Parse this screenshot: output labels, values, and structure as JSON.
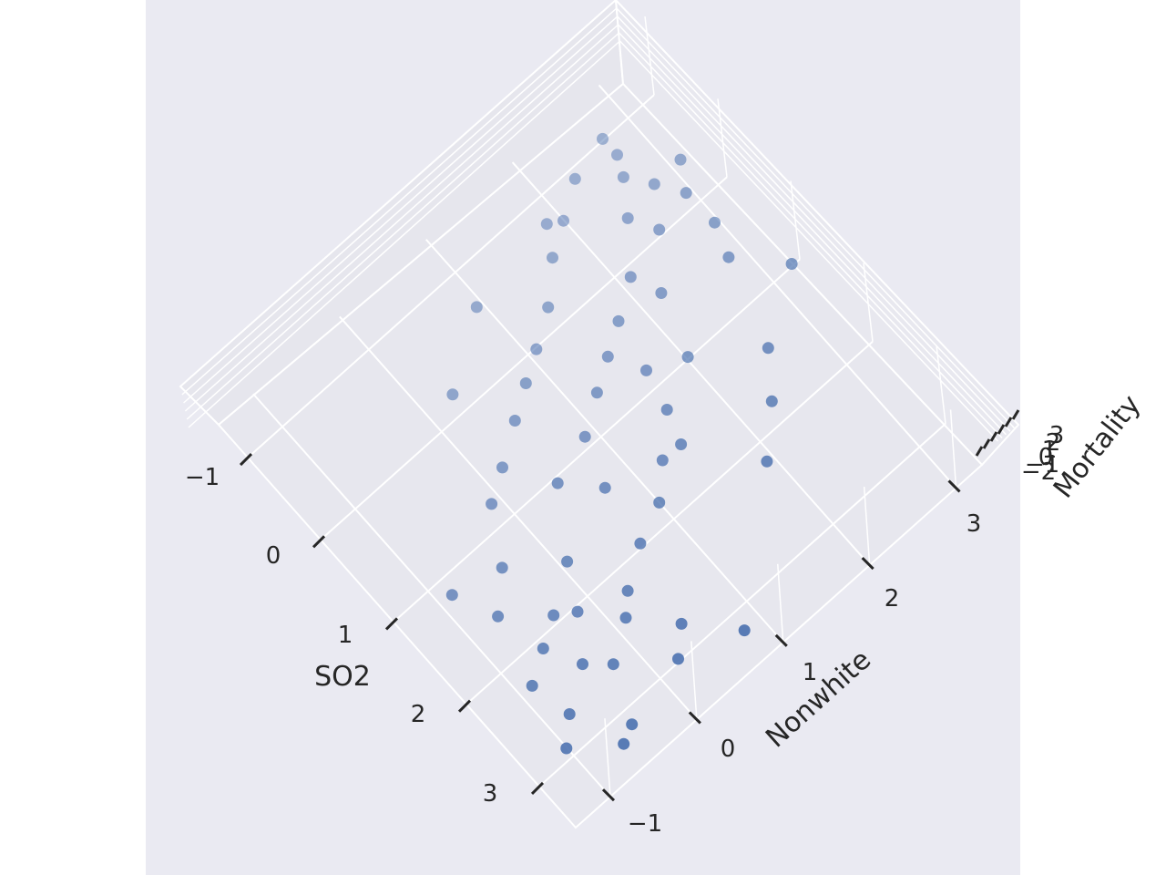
{
  "chart_data": {
    "type": "scatter",
    "projection": "3d",
    "title": "",
    "axes": {
      "x": {
        "label": "SO2",
        "ticks": [
          "−1",
          "0",
          "1",
          "2",
          "3"
        ]
      },
      "y": {
        "label": "Nonwhite",
        "ticks": [
          "−1",
          "0",
          "1",
          "2",
          "3"
        ]
      },
      "z": {
        "label": "Mortality",
        "ticks": [
          "−2",
          "−1",
          "0",
          "1",
          "2",
          "3"
        ]
      }
    },
    "grid": true,
    "legend": "none",
    "colors": {
      "figure_background": "#ffffff",
      "axes_background": "#eaeaf2",
      "pane": "#e7e7ee",
      "grid": "#ffffff",
      "point": "#4c72b0",
      "text": "#262626"
    },
    "points": [
      {
        "so2": -1.0,
        "nonwhite": 2.7,
        "mortality": 0.5
      },
      {
        "so2": -0.9,
        "nonwhite": 2.3,
        "mortality": 0.3
      },
      {
        "so2": -0.8,
        "nonwhite": 2.7,
        "mortality": 0.6
      },
      {
        "so2": -0.7,
        "nonwhite": 2.0,
        "mortality": -0.2
      },
      {
        "so2": -0.6,
        "nonwhite": 2.6,
        "mortality": 1.0
      },
      {
        "so2": -0.5,
        "nonwhite": 1.7,
        "mortality": 0.4
      },
      {
        "so2": -0.4,
        "nonwhite": 2.8,
        "mortality": -0.3
      },
      {
        "so2": -0.3,
        "nonwhite": 2.4,
        "mortality": 0.8
      },
      {
        "so2": -0.2,
        "nonwhite": 1.4,
        "mortality": 0.0
      },
      {
        "so2": -0.1,
        "nonwhite": 2.9,
        "mortality": 1.5
      },
      {
        "so2": 0.0,
        "nonwhite": 1.1,
        "mortality": -0.5
      },
      {
        "so2": 0.1,
        "nonwhite": 2.1,
        "mortality": 0.2
      },
      {
        "so2": 0.2,
        "nonwhite": 0.8,
        "mortality": 0.7
      },
      {
        "so2": 0.3,
        "nonwhite": 1.8,
        "mortality": -0.8
      },
      {
        "so2": 0.4,
        "nonwhite": 0.5,
        "mortality": 1.2
      },
      {
        "so2": 0.5,
        "nonwhite": 1.5,
        "mortality": 0.1
      },
      {
        "so2": 0.6,
        "nonwhite": 0.2,
        "mortality": -0.4
      },
      {
        "so2": 0.7,
        "nonwhite": 1.2,
        "mortality": 0.9
      },
      {
        "so2": 0.8,
        "nonwhite": -0.1,
        "mortality": 0.3
      },
      {
        "so2": 0.9,
        "nonwhite": 0.9,
        "mortality": -0.1
      },
      {
        "so2": 1.0,
        "nonwhite": 2.0,
        "mortality": 0.6
      },
      {
        "so2": 1.1,
        "nonwhite": 0.4,
        "mortality": 1.8
      },
      {
        "so2": 1.2,
        "nonwhite": 1.6,
        "mortality": -0.6
      },
      {
        "so2": 1.3,
        "nonwhite": -0.4,
        "mortality": 0.4
      },
      {
        "so2": 1.4,
        "nonwhite": 0.7,
        "mortality": 1.1
      },
      {
        "so2": 1.5,
        "nonwhite": 1.3,
        "mortality": -1.2
      },
      {
        "so2": 1.6,
        "nonwhite": -0.7,
        "mortality": 0.2
      },
      {
        "so2": 1.7,
        "nonwhite": 0.0,
        "mortality": 2.2
      },
      {
        "so2": 1.8,
        "nonwhite": 1.0,
        "mortality": 0.0
      },
      {
        "so2": 1.9,
        "nonwhite": -0.3,
        "mortality": -0.9
      },
      {
        "so2": 2.0,
        "nonwhite": 0.6,
        "mortality": 1.4
      },
      {
        "so2": 2.1,
        "nonwhite": -0.6,
        "mortality": 0.5
      },
      {
        "so2": 2.2,
        "nonwhite": 0.3,
        "mortality": -0.3
      },
      {
        "so2": 2.3,
        "nonwhite": -0.9,
        "mortality": 1.0
      },
      {
        "so2": 2.4,
        "nonwhite": 0.1,
        "mortality": 0.8
      },
      {
        "so2": 2.5,
        "nonwhite": -0.5,
        "mortality": 2.6
      },
      {
        "so2": 2.6,
        "nonwhite": -0.2,
        "mortality": -0.7
      },
      {
        "so2": 2.7,
        "nonwhite": -0.8,
        "mortality": 0.3
      },
      {
        "so2": 2.8,
        "nonwhite": 0.4,
        "mortality": 1.6
      },
      {
        "so2": 2.9,
        "nonwhite": -1.0,
        "mortality": -0.2
      },
      {
        "so2": 3.0,
        "nonwhite": 0.2,
        "mortality": 0.9
      },
      {
        "so2": 3.1,
        "nonwhite": -0.4,
        "mortality": -1.5
      },
      {
        "so2": 3.2,
        "nonwhite": 0.8,
        "mortality": 0.6
      },
      {
        "so2": 3.3,
        "nonwhite": -0.7,
        "mortality": 2.9
      },
      {
        "so2": -0.8,
        "nonwhite": 1.9,
        "mortality": -1.0
      },
      {
        "so2": -0.6,
        "nonwhite": 0.9,
        "mortality": 1.3
      },
      {
        "so2": -0.4,
        "nonwhite": 3.1,
        "mortality": 0.0
      },
      {
        "so2": -0.2,
        "nonwhite": 0.3,
        "mortality": -0.5
      },
      {
        "so2": 0.0,
        "nonwhite": 2.5,
        "mortality": 2.0
      },
      {
        "so2": 0.2,
        "nonwhite": 3.0,
        "mortality": -1.3
      },
      {
        "so2": 0.4,
        "nonwhite": 2.2,
        "mortality": 0.4
      },
      {
        "so2": 0.6,
        "nonwhite": 2.8,
        "mortality": 1.7
      },
      {
        "so2": 0.8,
        "nonwhite": 1.7,
        "mortality": -0.9
      },
      {
        "so2": 1.0,
        "nonwhite": 3.2,
        "mortality": 0.7
      },
      {
        "so2": 1.2,
        "nonwhite": -0.9,
        "mortality": 1.1
      },
      {
        "so2": 1.4,
        "nonwhite": 2.6,
        "mortality": -0.4
      },
      {
        "so2": 1.6,
        "nonwhite": 1.4,
        "mortality": 2.4
      },
      {
        "so2": 1.8,
        "nonwhite": 2.3,
        "mortality": 0.2
      },
      {
        "so2": 2.0,
        "nonwhite": -0.1,
        "mortality": -1.7
      },
      {
        "so2": 2.2,
        "nonwhite": 1.9,
        "mortality": 1.0
      }
    ]
  }
}
